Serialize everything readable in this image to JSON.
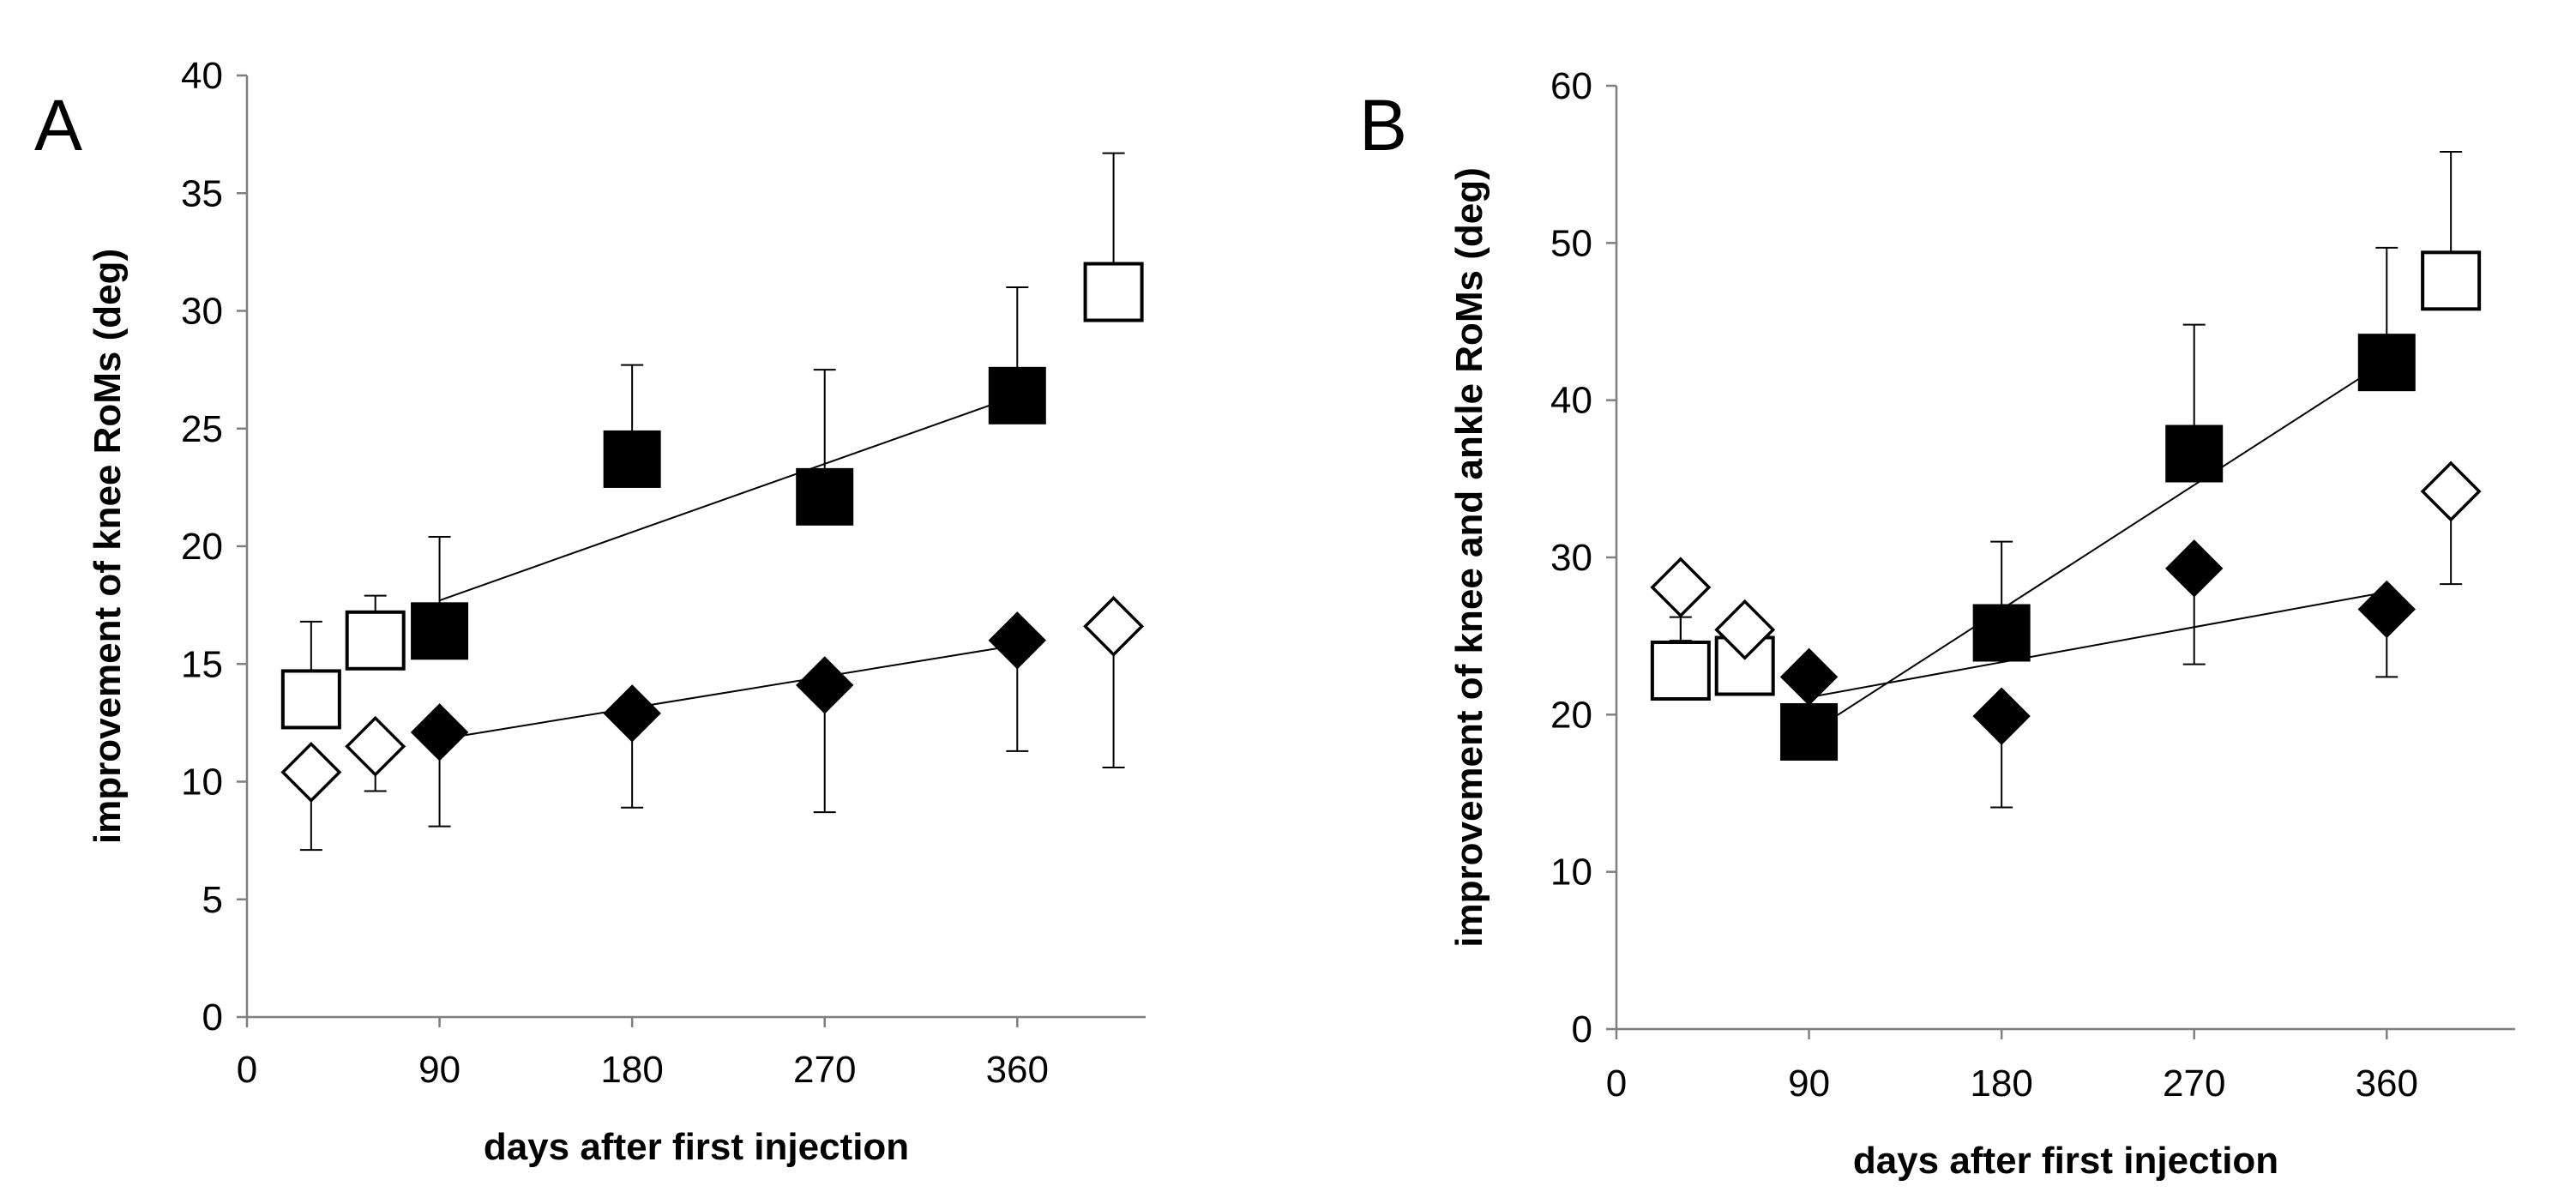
{
  "chart_data": [
    {
      "type": "scatter",
      "panel_label": "A",
      "title": "",
      "xlabel": "days after first injection",
      "ylabel": "improvement of knee RoMs (deg)",
      "xlim": [
        0,
        420
      ],
      "ylim": [
        0,
        40
      ],
      "xticks": [
        0,
        90,
        180,
        270,
        360
      ],
      "yticks": [
        0,
        5,
        10,
        15,
        20,
        25,
        30,
        35,
        40
      ],
      "grid": false,
      "legend": "none",
      "series": [
        {
          "name": "open square",
          "marker": "square",
          "filled": false,
          "points": [
            {
              "x": 30,
              "y": 13.5,
              "err_up": 3.3,
              "err_down": 0
            },
            {
              "x": 60,
              "y": 16.0,
              "err_up": 1.9,
              "err_down": 0
            },
            {
              "x": 405,
              "y": 30.8,
              "err_up": 5.9,
              "err_down": 0
            }
          ]
        },
        {
          "name": "filled square",
          "marker": "square",
          "filled": true,
          "trendline": {
            "x": [
              90,
              360
            ],
            "y": [
              17.7,
              26.4
            ]
          },
          "points": [
            {
              "x": 90,
              "y": 16.4,
              "err_up": 4.0,
              "err_down": 0
            },
            {
              "x": 180,
              "y": 23.7,
              "err_up": 4.0,
              "err_down": 0
            },
            {
              "x": 270,
              "y": 22.1,
              "err_up": 5.4,
              "err_down": 0
            },
            {
              "x": 360,
              "y": 26.4,
              "err_up": 4.6,
              "err_down": 0
            }
          ]
        },
        {
          "name": "open diamond",
          "marker": "diamond",
          "filled": false,
          "points": [
            {
              "x": 30,
              "y": 10.4,
              "err_up": 0,
              "err_down": 3.3
            },
            {
              "x": 60,
              "y": 11.5,
              "err_up": 0,
              "err_down": 1.9
            },
            {
              "x": 405,
              "y": 16.6,
              "err_up": 0,
              "err_down": 6.0
            }
          ]
        },
        {
          "name": "filled diamond",
          "marker": "diamond",
          "filled": true,
          "trendline": {
            "x": [
              90,
              360
            ],
            "y": [
              11.8,
              15.8
            ]
          },
          "points": [
            {
              "x": 90,
              "y": 12.1,
              "err_up": 0,
              "err_down": 4.0
            },
            {
              "x": 180,
              "y": 12.9,
              "err_up": 0,
              "err_down": 4.0
            },
            {
              "x": 270,
              "y": 14.1,
              "err_up": 0,
              "err_down": 5.4
            },
            {
              "x": 360,
              "y": 16.0,
              "err_up": 0,
              "err_down": 4.7
            }
          ]
        }
      ]
    },
    {
      "type": "scatter",
      "panel_label": "B",
      "title": "",
      "xlabel": "days after first injection",
      "ylabel": "improvement of knee and ankle RoMs  (deg)",
      "xlim": [
        0,
        420
      ],
      "ylim": [
        0,
        60
      ],
      "xticks": [
        0,
        90,
        180,
        270,
        360
      ],
      "yticks": [
        0,
        10,
        20,
        30,
        40,
        50,
        60
      ],
      "grid": false,
      "legend": "none",
      "series": [
        {
          "name": "open square",
          "marker": "square",
          "filled": false,
          "points": [
            {
              "x": 30,
              "y": 22.8,
              "err_up": 3.4,
              "err_down": 0
            },
            {
              "x": 60,
              "y": 23.1,
              "err_up": 2.4,
              "err_down": 0
            },
            {
              "x": 390,
              "y": 47.6,
              "err_up": 8.2,
              "err_down": 0
            }
          ]
        },
        {
          "name": "filled square",
          "marker": "square",
          "filled": true,
          "trendline": {
            "x": [
              90,
              360
            ],
            "y": [
              18.8,
              42.5
            ]
          },
          "points": [
            {
              "x": 90,
              "y": 18.9,
              "err_up": 0,
              "err_down": 0
            },
            {
              "x": 180,
              "y": 25.2,
              "err_up": 5.8,
              "err_down": 0
            },
            {
              "x": 270,
              "y": 36.6,
              "err_up": 8.2,
              "err_down": 0
            },
            {
              "x": 360,
              "y": 42.4,
              "err_up": 7.3,
              "err_down": 0
            }
          ]
        },
        {
          "name": "open diamond",
          "marker": "diamond",
          "filled": false,
          "points": [
            {
              "x": 30,
              "y": 28.1,
              "err_up": 0,
              "err_down": 3.4
            },
            {
              "x": 60,
              "y": 25.4,
              "err_up": 0,
              "err_down": 3.4
            },
            {
              "x": 390,
              "y": 34.2,
              "err_up": 0,
              "err_down": 5.9
            }
          ]
        },
        {
          "name": "filled diamond",
          "marker": "diamond",
          "filled": true,
          "trendline": {
            "x": [
              90,
              360
            ],
            "y": [
              21.1,
              27.8
            ]
          },
          "points": [
            {
              "x": 90,
              "y": 22.4,
              "err_up": 0,
              "err_down": 0
            },
            {
              "x": 180,
              "y": 19.9,
              "err_up": 0,
              "err_down": 5.8
            },
            {
              "x": 270,
              "y": 29.3,
              "err_up": 0,
              "err_down": 6.1
            },
            {
              "x": 360,
              "y": 26.7,
              "err_up": 0,
              "err_down": 4.3
            }
          ]
        }
      ]
    }
  ]
}
